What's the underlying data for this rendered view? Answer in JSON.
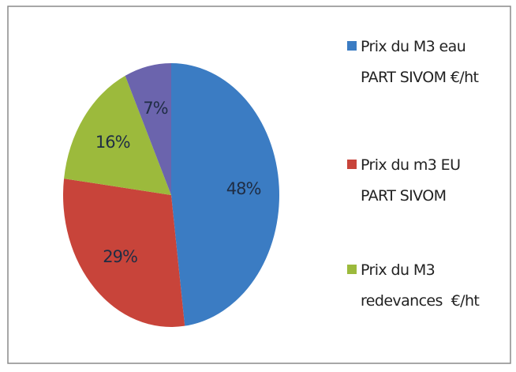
{
  "chart_data": {
    "type": "pie",
    "categories": [
      "Prix du M3 eau PART SIVOM €/ht",
      "Prix du m3 EU PART SIVOM",
      "Prix du M3 redevances  €/ht",
      null
    ],
    "values": [
      48,
      29,
      16,
      7
    ],
    "value_labels": [
      "48%",
      "29%",
      "16%",
      "7%"
    ],
    "colors": [
      "#3b7cc3",
      "#c8443a",
      "#9cba3c",
      "#6b64ad"
    ],
    "legend": "right"
  }
}
